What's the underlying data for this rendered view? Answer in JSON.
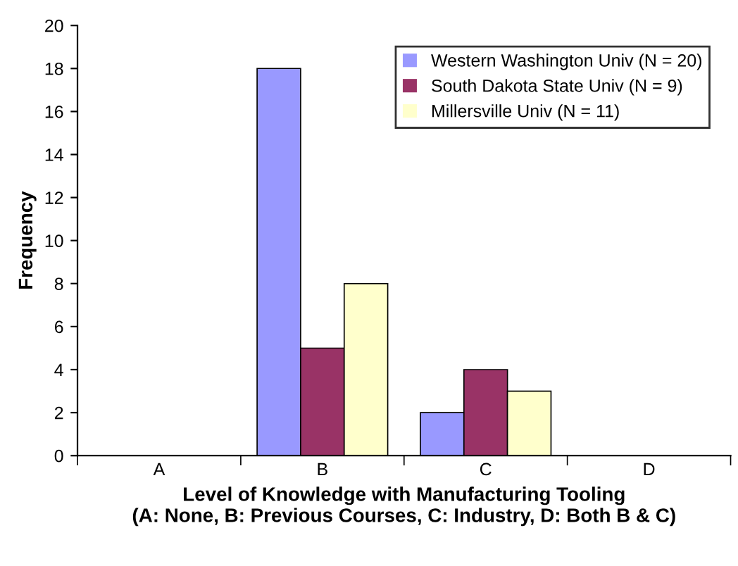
{
  "chart_data": {
    "type": "bar",
    "xlabel": "Level of Knowledge with Manufacturing Tooling\n(A: None, B: Previous Courses, C: Industry, D: Both B & C)",
    "ylabel": "Frequency",
    "categories": [
      "A",
      "B",
      "C",
      "D"
    ],
    "series": [
      {
        "name": "Western Washington Univ (N = 20)",
        "color": "#9999ff",
        "values": [
          0,
          18,
          2,
          0
        ]
      },
      {
        "name": "South Dakota State Univ (N = 9)",
        "color": "#993366",
        "values": [
          0,
          5,
          4,
          0
        ]
      },
      {
        "name": "Millersville Univ (N = 11)",
        "color": "#ffffcc",
        "values": [
          0,
          8,
          3,
          0
        ]
      }
    ],
    "ylim": [
      0,
      20
    ],
    "yticks": [
      0,
      2,
      4,
      6,
      8,
      10,
      12,
      14,
      16,
      18,
      20
    ],
    "grid": false,
    "legend": "top right"
  }
}
